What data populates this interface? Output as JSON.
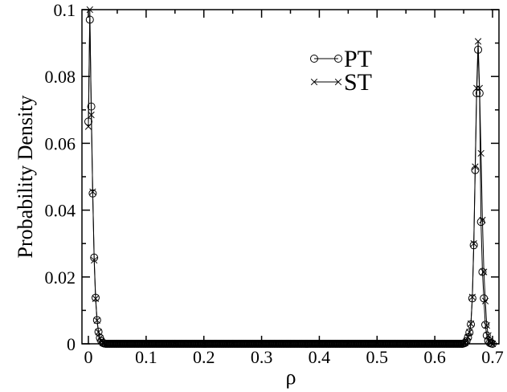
{
  "chart_data": {
    "type": "line",
    "title": "",
    "xlabel": "ρ",
    "ylabel": "Probability Density",
    "xlim": [
      0,
      0.7
    ],
    "ylim": [
      0,
      0.1
    ],
    "x_ticks": [
      "0",
      "0.1",
      "0.2",
      "0.3",
      "0.4",
      "0.5",
      "0.6",
      "0.7"
    ],
    "y_ticks": [
      "0",
      "0.02",
      "0.04",
      "0.06",
      "0.08",
      "0.1"
    ],
    "legend_position": "top-right",
    "grid": false,
    "series": [
      {
        "name": "PT",
        "marker": "circle",
        "x": [
          0,
          0.0025,
          0.005,
          0.0075,
          0.01,
          0.0125,
          0.015,
          0.0175,
          0.02,
          0.0225,
          0.025,
          0.0275,
          0.03,
          0.6475,
          0.65,
          0.6525,
          0.655,
          0.6575,
          0.66,
          0.6625,
          0.665,
          0.6675,
          0.67,
          0.6725,
          0.675,
          0.6775,
          0.68,
          0.6825,
          0.685,
          0.6875,
          0.69,
          0.6925,
          0.695,
          0.6975,
          0.7
        ],
        "y": [
          0.0665,
          0.097,
          0.071,
          0.045,
          0.0258,
          0.0138,
          0.0071,
          0.0036,
          0.0018,
          0.0008,
          0.0003,
          0.0001,
          0,
          0,
          0.0001,
          0.0003,
          0.0008,
          0.0019,
          0.0034,
          0.0058,
          0.0136,
          0.0295,
          0.052,
          0.075,
          0.088,
          0.075,
          0.0365,
          0.0215,
          0.0136,
          0.0057,
          0.0025,
          0.0009,
          0.0003,
          0.0001,
          0
        ]
      },
      {
        "name": "ST",
        "marker": "x",
        "x": [
          0,
          0.0025,
          0.005,
          0.0075,
          0.01,
          0.0125,
          0.015,
          0.0175,
          0.02,
          0.0225,
          0.025,
          0.0275,
          0.03,
          0.6475,
          0.65,
          0.6525,
          0.655,
          0.6575,
          0.66,
          0.6625,
          0.665,
          0.6675,
          0.67,
          0.6725,
          0.675,
          0.6775,
          0.68,
          0.6825,
          0.685,
          0.6875,
          0.69,
          0.6925,
          0.695,
          0.6975,
          0.7
        ],
        "y": [
          0.065,
          0.1,
          0.0685,
          0.0455,
          0.025,
          0.0135,
          0.007,
          0.0035,
          0.0017,
          0.0008,
          0.0003,
          0.0001,
          0,
          0,
          0.0001,
          0.0003,
          0.0008,
          0.002,
          0.0035,
          0.006,
          0.014,
          0.03,
          0.053,
          0.0765,
          0.0905,
          0.0765,
          0.057,
          0.037,
          0.0215,
          0.0128,
          0.0055,
          0.0025,
          0.0008,
          0.0003,
          0
        ]
      }
    ],
    "density_marker_step": 0.0025
  }
}
